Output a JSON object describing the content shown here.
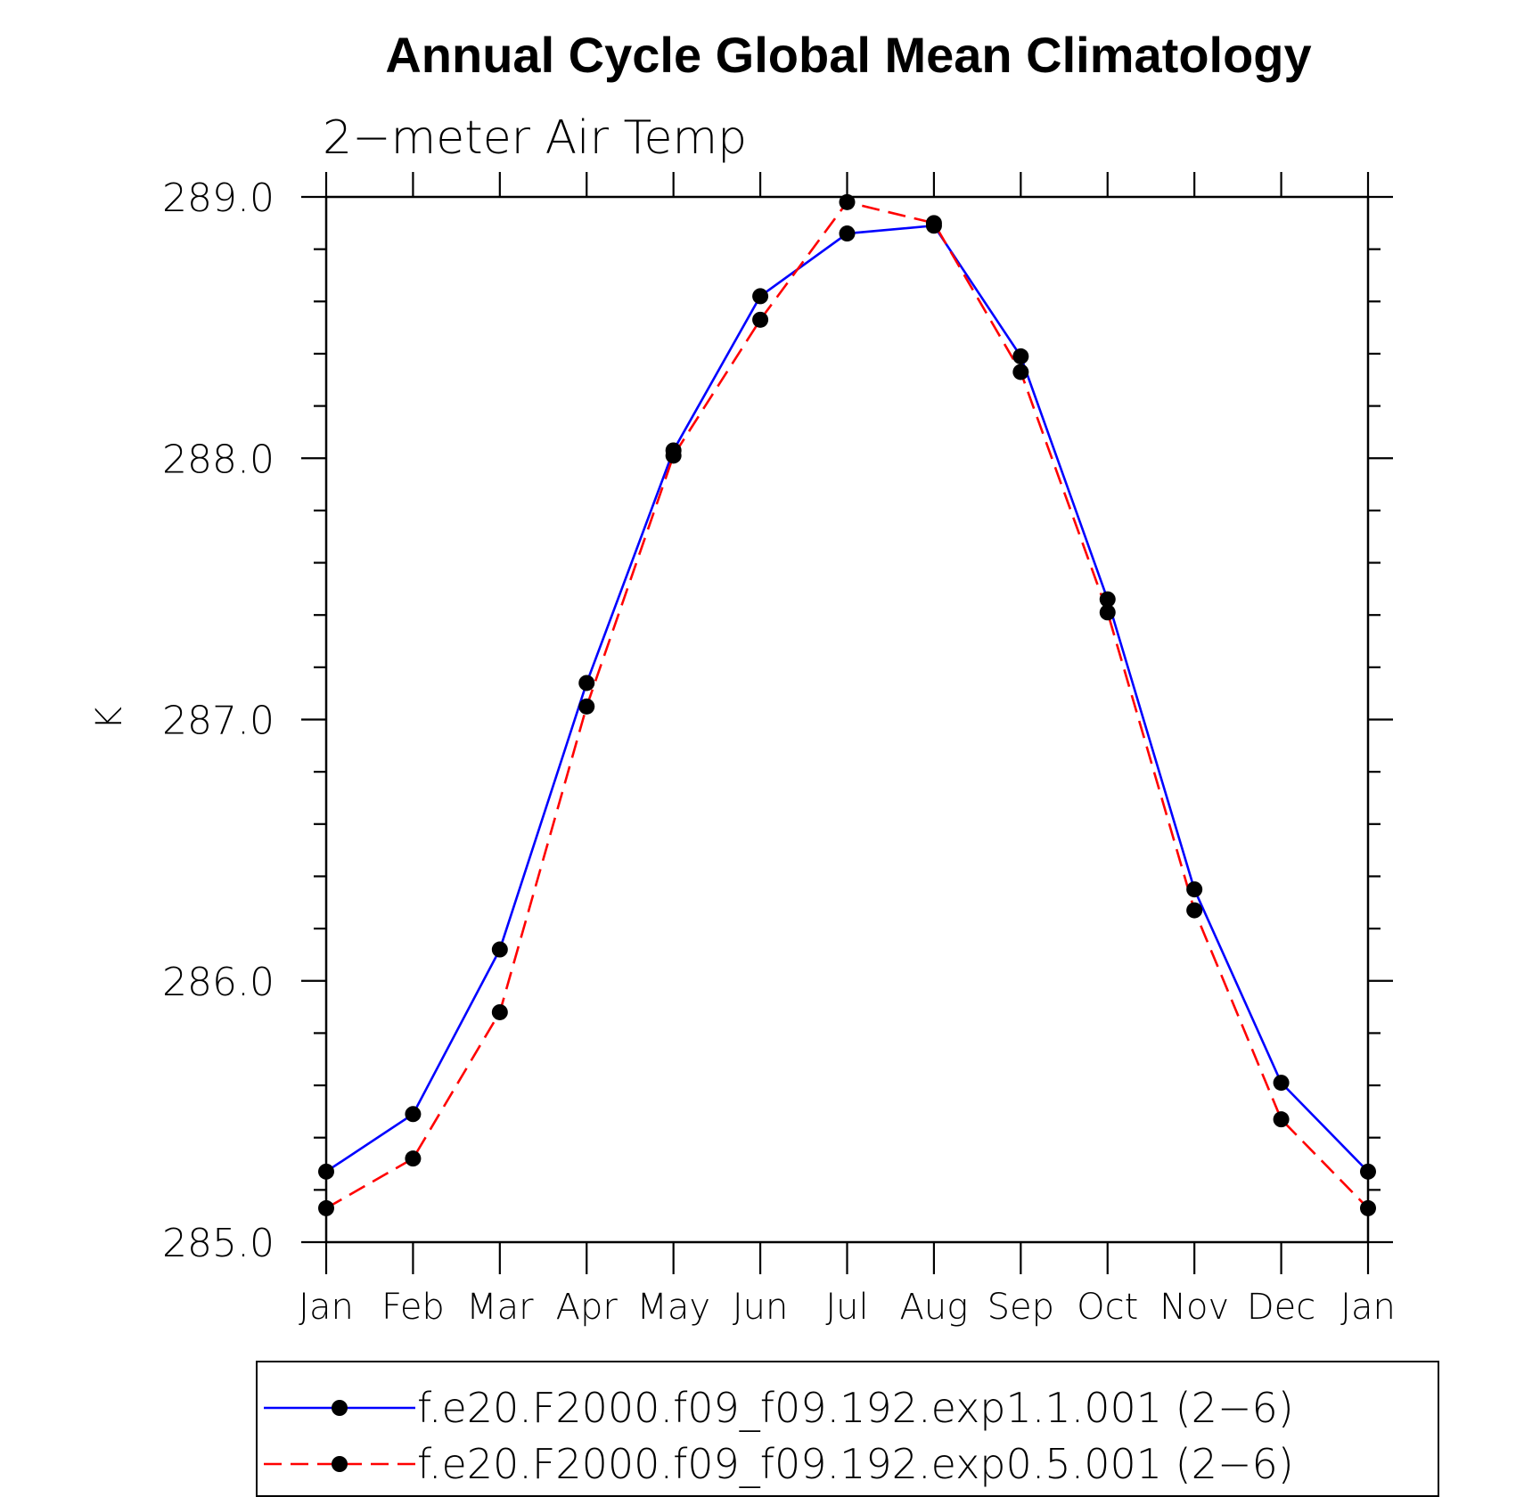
{
  "chart_data": {
    "type": "line",
    "title": "Annual Cycle Global Mean Climatology",
    "subtitle": "2−meter Air Temp",
    "ylabel": "K",
    "xlabel": "",
    "categories": [
      "Jan",
      "Feb",
      "Mar",
      "Apr",
      "May",
      "Jun",
      "Jul",
      "Aug",
      "Sep",
      "Oct",
      "Nov",
      "Dec",
      "Jan"
    ],
    "ylim": [
      285.0,
      289.0
    ],
    "yticks": [
      285.0,
      286.0,
      287.0,
      288.0,
      289.0
    ],
    "ytick_labels": [
      "285.0",
      "286.0",
      "287.0",
      "288.0",
      "289.0"
    ],
    "legend_position": "bottom",
    "series": [
      {
        "name": "f.e20.F2000.f09_f09.192.exp1.1.001 (2−6)",
        "color": "#0000ff",
        "dash": "solid",
        "marker": "filled-circle",
        "values": [
          285.27,
          285.49,
          286.12,
          287.14,
          288.03,
          288.62,
          288.86,
          288.89,
          288.39,
          287.46,
          286.35,
          285.61,
          285.27
        ]
      },
      {
        "name": "f.e20.F2000.f09_f09.192.exp0.5.001 (2−6)",
        "color": "#ff0000",
        "dash": "dashed",
        "marker": "filled-circle",
        "values": [
          285.13,
          285.32,
          285.88,
          287.05,
          288.01,
          288.53,
          288.98,
          288.9,
          288.33,
          287.41,
          286.27,
          285.47,
          285.13
        ]
      }
    ]
  }
}
